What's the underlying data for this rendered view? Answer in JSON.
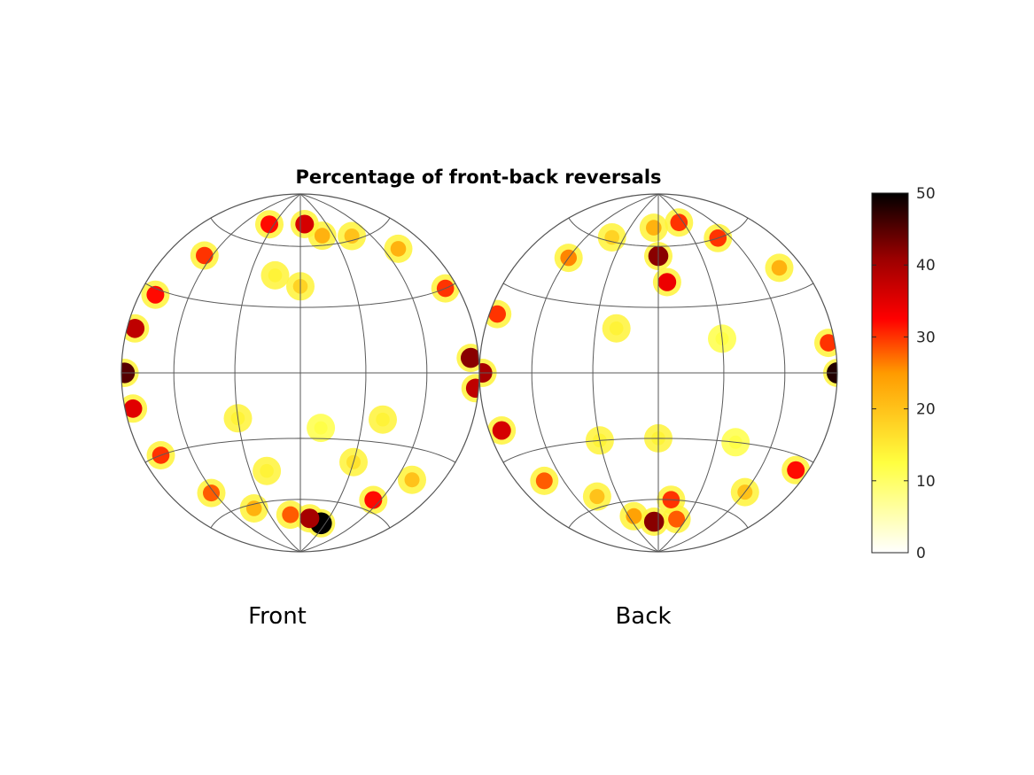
{
  "chart_data": {
    "type": "heatmap",
    "title": "Percentage of front-back reversals",
    "panels": [
      {
        "label": "Front",
        "hotspots": [
          {
            "lon": -88,
            "lat": 0,
            "v": 45
          },
          {
            "lon": -85,
            "lat": 15,
            "v": 38
          },
          {
            "lon": -85,
            "lat": -12,
            "v": 35
          },
          {
            "lon": -80,
            "lat": 28,
            "v": 32
          },
          {
            "lon": -78,
            "lat": -30,
            "v": 30
          },
          {
            "lon": -65,
            "lat": 48,
            "v": 30
          },
          {
            "lon": -62,
            "lat": -50,
            "v": 28
          },
          {
            "lon": -35,
            "lat": 70,
            "v": 32
          },
          {
            "lon": 5,
            "lat": 72,
            "v": 36
          },
          {
            "lon": 20,
            "lat": 65,
            "v": 22
          },
          {
            "lon": 25,
            "lat": -72,
            "v": 50
          },
          {
            "lon": 10,
            "lat": -70,
            "v": 40
          },
          {
            "lon": -10,
            "lat": -68,
            "v": 28
          },
          {
            "lon": -40,
            "lat": -62,
            "v": 22
          },
          {
            "lon": 55,
            "lat": -55,
            "v": 32
          },
          {
            "lon": 70,
            "lat": -42,
            "v": 20
          },
          {
            "lon": 85,
            "lat": 5,
            "v": 42
          },
          {
            "lon": 88,
            "lat": -5,
            "v": 38
          },
          {
            "lon": 82,
            "lat": 30,
            "v": 30
          },
          {
            "lon": 70,
            "lat": 50,
            "v": 22
          },
          {
            "lon": 45,
            "lat": 62,
            "v": 20
          },
          {
            "lon": 0,
            "lat": 40,
            "v": 18
          },
          {
            "lon": -15,
            "lat": 45,
            "v": 14
          },
          {
            "lon": 30,
            "lat": -40,
            "v": 16
          },
          {
            "lon": 40,
            "lat": -20,
            "v": 14
          },
          {
            "lon": -30,
            "lat": -20,
            "v": 14
          },
          {
            "lon": -20,
            "lat": -45,
            "v": 14
          },
          {
            "lon": 10,
            "lat": -25,
            "v": 12
          }
        ]
      },
      {
        "label": "Back",
        "hotspots": [
          {
            "lon": -88,
            "lat": 0,
            "v": 40
          },
          {
            "lon": -82,
            "lat": -20,
            "v": 36
          },
          {
            "lon": -85,
            "lat": 20,
            "v": 30
          },
          {
            "lon": -72,
            "lat": -42,
            "v": 28
          },
          {
            "lon": -60,
            "lat": 48,
            "v": 26
          },
          {
            "lon": -40,
            "lat": 62,
            "v": 18
          },
          {
            "lon": 0,
            "lat": 55,
            "v": 42
          },
          {
            "lon": 5,
            "lat": 42,
            "v": 34
          },
          {
            "lon": -5,
            "lat": 70,
            "v": 22
          },
          {
            "lon": 25,
            "lat": 72,
            "v": 30
          },
          {
            "lon": 50,
            "lat": 60,
            "v": 30
          },
          {
            "lon": 75,
            "lat": 40,
            "v": 22
          },
          {
            "lon": 90,
            "lat": 0,
            "v": 48
          },
          {
            "lon": 86,
            "lat": 10,
            "v": 30
          },
          {
            "lon": 82,
            "lat": -35,
            "v": 32
          },
          {
            "lon": 60,
            "lat": -50,
            "v": 20
          },
          {
            "lon": -5,
            "lat": -72,
            "v": 42
          },
          {
            "lon": 10,
            "lat": -60,
            "v": 30
          },
          {
            "lon": 20,
            "lat": -70,
            "v": 28
          },
          {
            "lon": -25,
            "lat": -68,
            "v": 24
          },
          {
            "lon": -45,
            "lat": -55,
            "v": 20
          },
          {
            "lon": -20,
            "lat": 20,
            "v": 14
          },
          {
            "lon": 30,
            "lat": 15,
            "v": 12
          },
          {
            "lon": 0,
            "lat": -30,
            "v": 14
          },
          {
            "lon": -30,
            "lat": -30,
            "v": 14
          },
          {
            "lon": 40,
            "lat": -30,
            "v": 12
          }
        ]
      }
    ],
    "colorbar": {
      "min": 0,
      "max": 50,
      "ticks": [
        "0",
        "10",
        "20",
        "30",
        "40",
        "50"
      ],
      "colormap": "hot-reversed"
    },
    "grid": true
  }
}
